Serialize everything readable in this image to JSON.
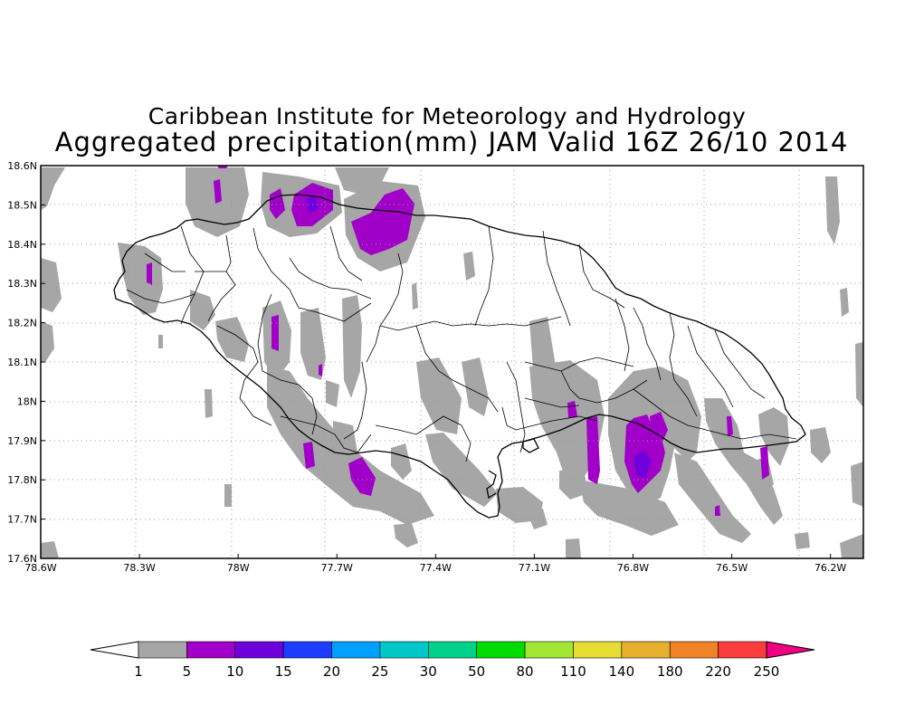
{
  "title": "Caribbean Institute for Meteorology and Hydrology",
  "subtitle": "Aggregated precipitation(mm) JAM Valid 16Z 26/10 2014",
  "y_ticks": [
    "18.6N",
    "18.5N",
    "18.4N",
    "18.3N",
    "18.2N",
    "18.1N",
    "18N",
    "17.9N",
    "17.8N",
    "17.7N",
    "17.6N"
  ],
  "x_ticks": [
    "78.6W",
    "78.3W",
    "78W",
    "77.7W",
    "77.4W",
    "77.1W",
    "76.8W",
    "76.5W",
    "76.2W"
  ],
  "colorbar": {
    "labels": [
      "1",
      "5",
      "10",
      "15",
      "20",
      "25",
      "30",
      "50",
      "80",
      "110",
      "140",
      "180",
      "220",
      "250"
    ],
    "under_color": "#ffffff",
    "colors": [
      "#a6a6a6",
      "#a000c8",
      "#6e00dc",
      "#1e3cff",
      "#00a0ff",
      "#00c8c8",
      "#00d28c",
      "#00dc00",
      "#a0e632",
      "#e6dc32",
      "#e6af2d",
      "#f08228",
      "#fa3c3c"
    ],
    "over_color": "#f00082"
  },
  "precip_colors": {
    "light": "#a6a6a6",
    "moderate": "#a000c8",
    "heavy": "#6e00dc"
  },
  "coastline_color": "#000000",
  "grid_color": "#999999"
}
